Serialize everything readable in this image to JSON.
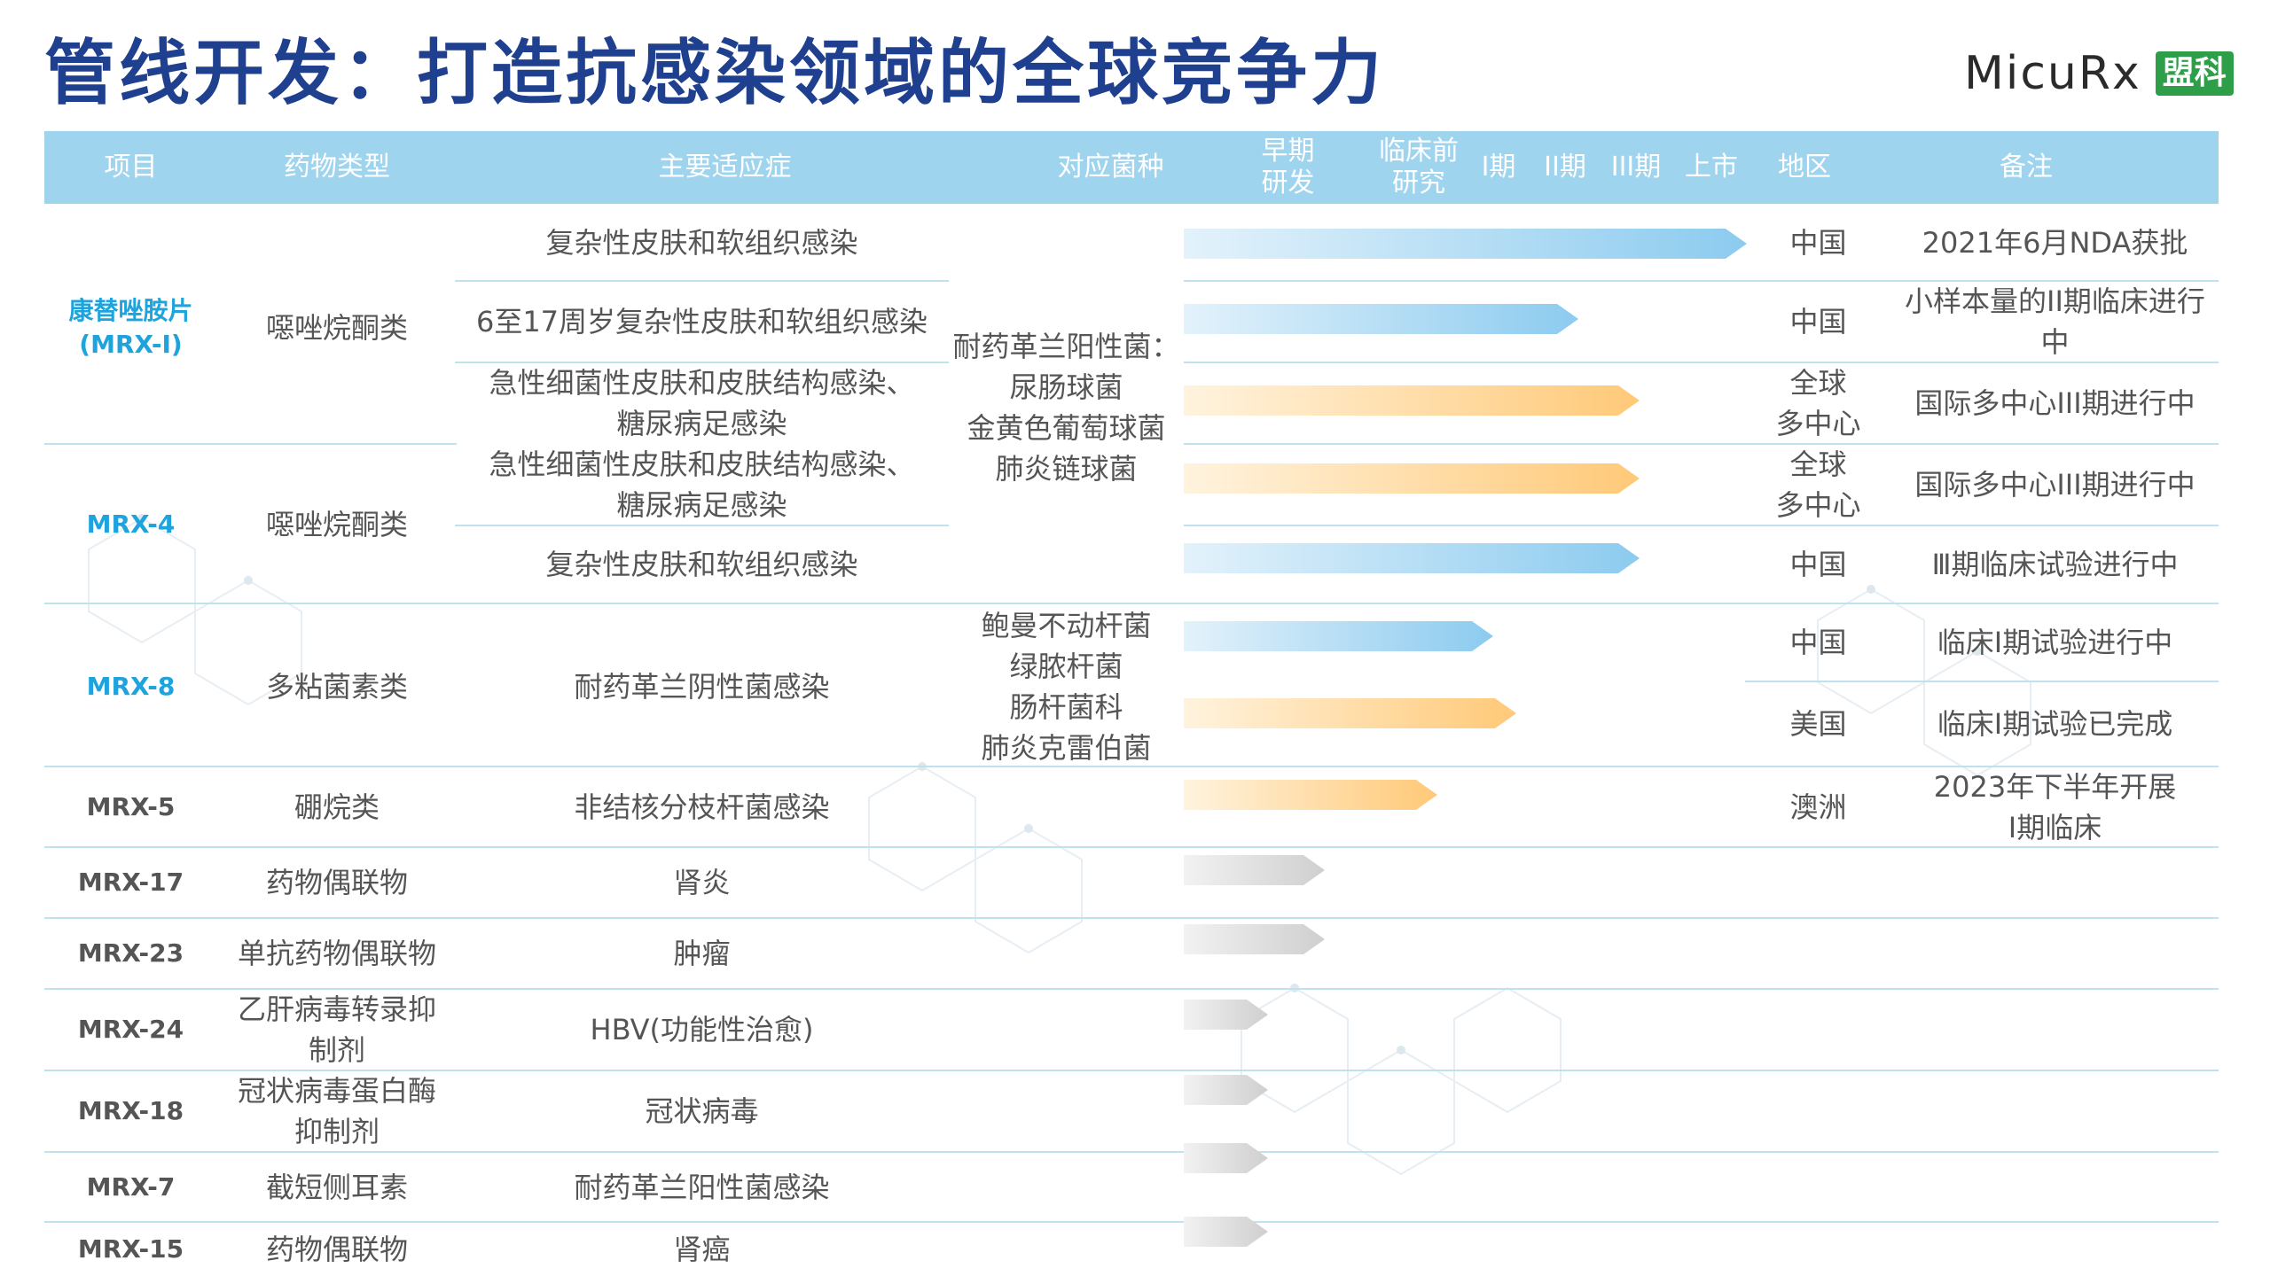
{
  "title": "管线开发：打造抗感染领域的全球竞争力",
  "logo": {
    "text": "MicuRx",
    "cn": "盟科"
  },
  "headers": {
    "project": "项目",
    "drug_type": "药物类型",
    "indication": "主要适应症",
    "pathogen": "对应菌种",
    "early": "早期\n研发",
    "preclinical": "临床前\n研究",
    "phase1": "I期",
    "phase2": "II期",
    "phase3": "III期",
    "market": "上市",
    "region": "地区",
    "remarks": "备注"
  },
  "stage_scale": [
    "早期研发",
    "临床前研究",
    "I期",
    "II期",
    "III期",
    "上市"
  ],
  "colors": {
    "header_bg": "#9fd4ef",
    "title": "#1f3f8f",
    "blue_bar": "#8ccbef",
    "orange_bar": "#ffd08a",
    "gray_bar": "#d4d4d4",
    "code_blue": "#1fa3dc"
  },
  "projects": [
    {
      "code": "康替唑胺片\n(MRX-I)",
      "highlight": true,
      "drug_type": "噁唑烷酮类"
    },
    {
      "code": "MRX-4",
      "highlight": true,
      "drug_type": "噁唑烷酮类"
    },
    {
      "code": "MRX-8",
      "highlight": true,
      "drug_type": "多粘菌素类"
    },
    {
      "code": "MRX-5",
      "highlight": false,
      "drug_type": "硼烷类"
    },
    {
      "code": "MRX-17",
      "highlight": false,
      "drug_type": "药物偶联物"
    },
    {
      "code": "MRX-23",
      "highlight": false,
      "drug_type": "单抗药物偶联物"
    },
    {
      "code": "MRX-24",
      "highlight": false,
      "drug_type": "乙肝病毒转录抑\n制剂"
    },
    {
      "code": "MRX-18",
      "highlight": false,
      "drug_type": "冠状病毒蛋白酶\n抑制剂"
    },
    {
      "code": "MRX-7",
      "highlight": false,
      "drug_type": "截短侧耳素"
    },
    {
      "code": "MRX-15",
      "highlight": false,
      "drug_type": "药物偶联物"
    }
  ],
  "indications": [
    "复杂性皮肤和软组织感染",
    "6至17周岁复杂性皮肤和软组织感染",
    "急性细菌性皮肤和皮肤结构感染、\n糖尿病足感染",
    "急性细菌性皮肤和皮肤结构感染、\n糖尿病足感染",
    "复杂性皮肤和软组织感染",
    "耐药革兰阴性菌感染",
    "非结核分枝杆菌感染",
    "肾炎",
    "肿瘤",
    "HBV(功能性治愈)",
    "冠状病毒",
    "耐药革兰阳性菌感染",
    "肾癌"
  ],
  "pathogens": {
    "gram_positive": "耐药革兰阳性菌：\n尿肠球菌\n金黄色葡萄球菌\n肺炎链球菌",
    "gram_negative": "鲍曼不动杆菌\n绿脓杆菌\n肠杆菌科\n肺炎克雷伯菌"
  },
  "pipeline": [
    {
      "progress": 1.0,
      "color": "blue",
      "region": "中国",
      "remark": "2021年6月NDA获批"
    },
    {
      "progress": 0.7,
      "color": "blue",
      "region": "中国",
      "remark": "小样本量的II期临床进行\n中"
    },
    {
      "progress": 0.81,
      "color": "orange",
      "region": "全球\n多中心",
      "remark": "国际多中心III期进行中"
    },
    {
      "progress": 0.81,
      "color": "orange",
      "region": "全球\n多中心",
      "remark": "国际多中心III期进行中"
    },
    {
      "progress": 0.81,
      "color": "blue",
      "region": "中国",
      "remark": "Ⅲ期临床试验进行中"
    },
    {
      "progress": 0.55,
      "color": "blue",
      "region": "中国",
      "remark": "临床I期试验进行中"
    },
    {
      "progress": 0.59,
      "color": "orange",
      "region": "美国",
      "remark": "临床I期试验已完成"
    },
    {
      "progress": 0.45,
      "color": "orange",
      "region": "澳洲",
      "remark": "2023年下半年开展\nI期临床"
    },
    {
      "progress": 0.25,
      "color": "gray",
      "region": "",
      "remark": ""
    },
    {
      "progress": 0.25,
      "color": "gray",
      "region": "",
      "remark": ""
    },
    {
      "progress": 0.15,
      "color": "gray",
      "region": "",
      "remark": ""
    },
    {
      "progress": 0.15,
      "color": "gray",
      "region": "",
      "remark": ""
    },
    {
      "progress": 0.15,
      "color": "gray",
      "region": "",
      "remark": ""
    },
    {
      "progress": 0.15,
      "color": "gray",
      "region": "",
      "remark": ""
    }
  ]
}
